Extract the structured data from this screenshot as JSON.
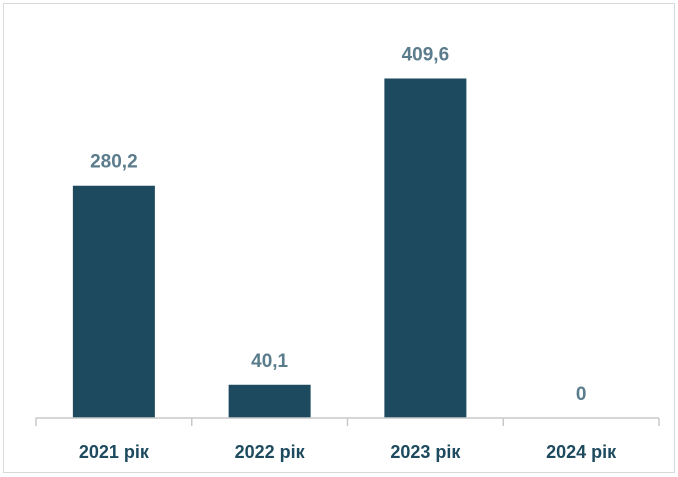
{
  "chart_data": {
    "type": "bar",
    "categories": [
      "2021 рік",
      "2022 рік",
      "2023 рік",
      "2024 рік"
    ],
    "values": [
      280.2,
      40.1,
      409.6,
      0
    ],
    "value_labels": [
      "280,2",
      "40,1",
      "409,6",
      "0"
    ],
    "ylim": [
      0,
      450
    ],
    "grid": false,
    "colors": {
      "bar": "#1d4a5e",
      "data_label": "#5b7c8c",
      "tick_label": "#1d4a5e",
      "axis": "#c8c8c8"
    }
  }
}
